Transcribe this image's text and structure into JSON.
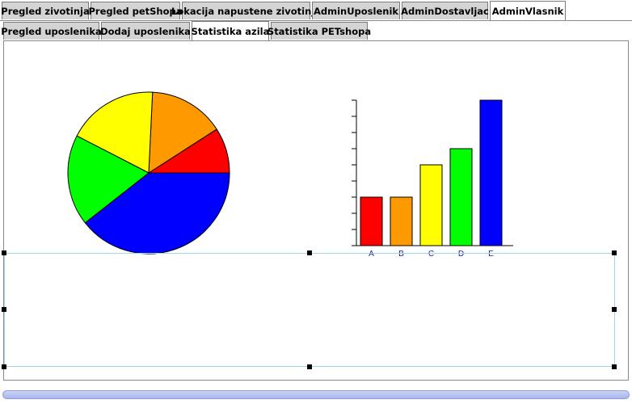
{
  "tabs_top": [
    {
      "label": "Pregled zivotinja",
      "active": false
    },
    {
      "label": "Pregled petShopa",
      "active": false
    },
    {
      "label": "Lokacija napustene zivotinje",
      "active": false
    },
    {
      "label": "AdminUposlenik",
      "active": false
    },
    {
      "label": "AdminDostavljac",
      "active": false
    },
    {
      "label": "AdminVlasnik",
      "active": true
    }
  ],
  "tabs_sub": [
    {
      "label": "Pregled uposlenika",
      "active": false
    },
    {
      "label": "Dodaj uposlenika",
      "active": false
    },
    {
      "label": "Statistika azila",
      "active": true
    },
    {
      "label": "Statistika PETshopa",
      "active": false
    }
  ],
  "chart_data": [
    {
      "type": "pie",
      "slices": [
        {
          "value": 3,
          "color": "#ff0000"
        },
        {
          "value": 5,
          "color": "#ff9900"
        },
        {
          "value": 6,
          "color": "#ffff00"
        },
        {
          "value": 6,
          "color": "#00ff00"
        },
        {
          "value": 13,
          "color": "#0000ff"
        }
      ]
    },
    {
      "type": "bar",
      "categories": [
        "A",
        "B",
        "C",
        "D",
        "E"
      ],
      "values": [
        3,
        3,
        5,
        6,
        9
      ],
      "colors": [
        "#ff0000",
        "#ff9900",
        "#ffff00",
        "#00ff00",
        "#0000ff"
      ],
      "ylim": [
        0,
        9
      ],
      "ticks": 9
    }
  ]
}
